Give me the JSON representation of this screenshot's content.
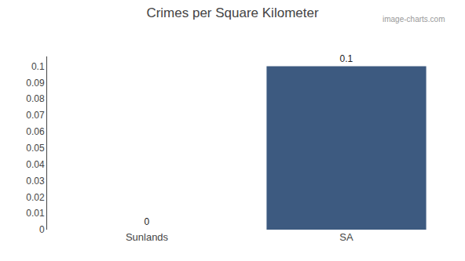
{
  "chart_data": {
    "type": "bar",
    "title": "Crimes per Square Kilometer",
    "categories": [
      "Sunlands",
      "SA"
    ],
    "values": [
      0.0,
      0.1
    ],
    "color": "#3d5a80",
    "ylim": [
      0,
      0.106
    ],
    "yticks": [
      0,
      0.01,
      0.02,
      0.03,
      0.04,
      0.05,
      0.06,
      0.07,
      0.08,
      0.09,
      0.1
    ],
    "grid": false,
    "data_labels": true,
    "annotations": [
      "image-charts.com"
    ]
  }
}
